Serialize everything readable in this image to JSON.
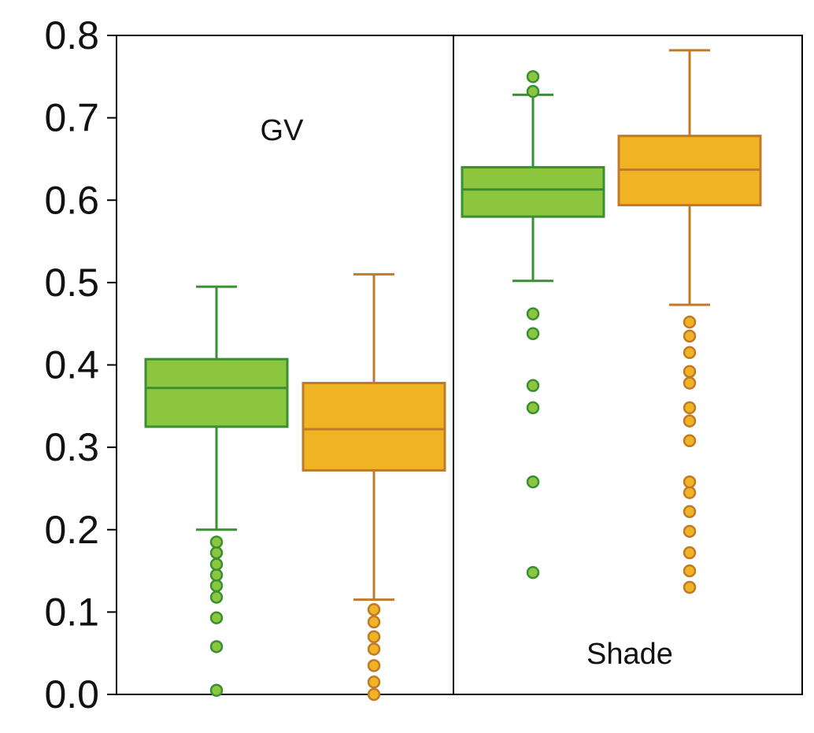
{
  "chart_data": {
    "type": "box",
    "title": "",
    "xlabel": "",
    "ylabel": "",
    "ylim": [
      0.0,
      0.8
    ],
    "yticks": [
      "0.0",
      "0.1",
      "0.2",
      "0.3",
      "0.4",
      "0.5",
      "0.6",
      "0.7",
      "0.8"
    ],
    "grid": false,
    "legend": "none",
    "colors": {
      "green_fill": "#8cc63f",
      "green_line": "#3a8f32",
      "orange_fill": "#f0b323",
      "orange_line": "#c07a2a",
      "axis": "#000000"
    },
    "panels": [
      {
        "label": "GV",
        "boxes": [
          {
            "color": "green",
            "whisker_low": 0.2,
            "q1": 0.325,
            "median": 0.372,
            "q3": 0.407,
            "whisker_high": 0.495,
            "outliers": [
              0.005,
              0.058,
              0.093,
              0.118,
              0.132,
              0.145,
              0.158,
              0.172,
              0.185
            ]
          },
          {
            "color": "orange",
            "whisker_low": 0.115,
            "q1": 0.272,
            "median": 0.322,
            "q3": 0.378,
            "whisker_high": 0.51,
            "outliers": [
              0.0,
              0.015,
              0.035,
              0.055,
              0.07,
              0.088,
              0.103
            ]
          }
        ]
      },
      {
        "label": "Shade",
        "boxes": [
          {
            "color": "green",
            "whisker_low": 0.502,
            "q1": 0.58,
            "median": 0.613,
            "q3": 0.64,
            "whisker_high": 0.728,
            "outliers": [
              0.148,
              0.258,
              0.348,
              0.375,
              0.438,
              0.462,
              0.732,
              0.75
            ]
          },
          {
            "color": "orange",
            "whisker_low": 0.473,
            "q1": 0.594,
            "median": 0.637,
            "q3": 0.678,
            "whisker_high": 0.782,
            "outliers": [
              0.13,
              0.15,
              0.172,
              0.198,
              0.222,
              0.245,
              0.258,
              0.308,
              0.332,
              0.348,
              0.378,
              0.392,
              0.415,
              0.435,
              0.452
            ]
          }
        ]
      }
    ]
  }
}
